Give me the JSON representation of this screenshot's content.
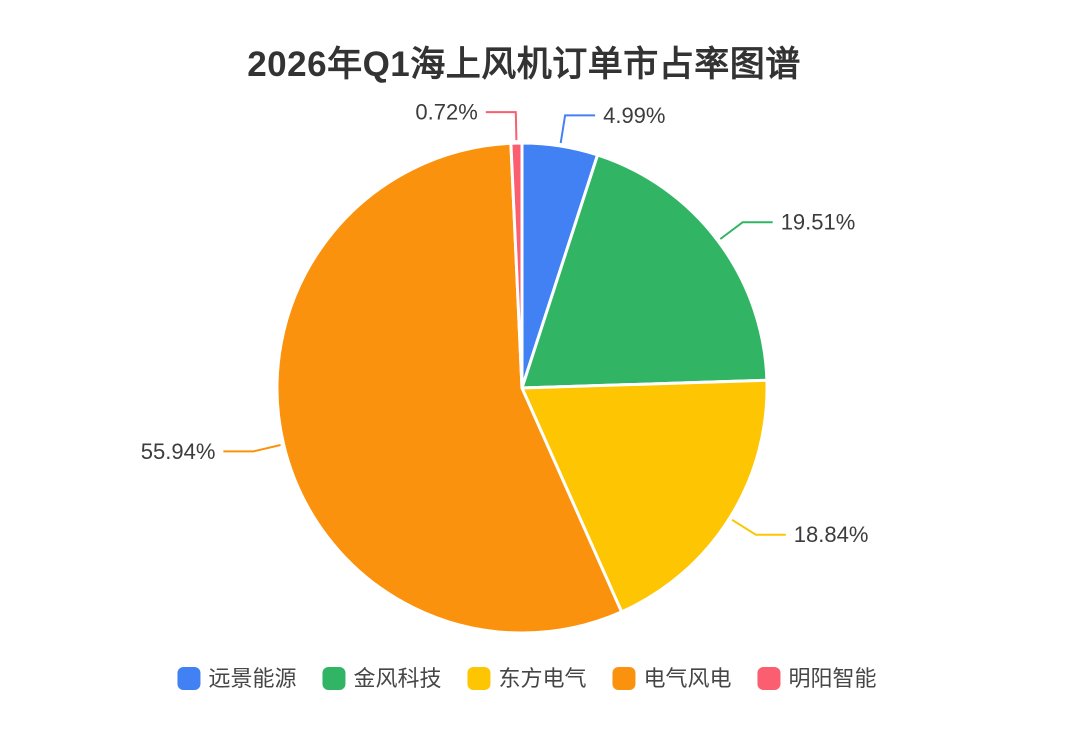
{
  "title": "2026年Q1海上风机订单市占率图谱",
  "chart_data": {
    "type": "pie",
    "title": "2026年Q1海上风机订单市占率图谱",
    "unit": "%",
    "start_angle": "top",
    "direction": "clockwise",
    "series": [
      {
        "name": "远景能源",
        "value": 4.99,
        "label": "4.99%",
        "color": "#4181f4"
      },
      {
        "name": "金风科技",
        "value": 19.51,
        "label": "19.51%",
        "color": "#31b564"
      },
      {
        "name": "东方电气",
        "value": 18.84,
        "label": "18.84%",
        "color": "#fdc502"
      },
      {
        "name": "电气风电",
        "value": 55.94,
        "label": "55.94%",
        "color": "#fb920e"
      },
      {
        "name": "明阳智能",
        "value": 0.72,
        "label": "0.72%",
        "color": "#fa5e70"
      }
    ],
    "legend": [
      "远景能源",
      "金风科技",
      "东方电气",
      "电气风电",
      "明阳智能"
    ],
    "legend_position": "bottom",
    "slice_border_color": "#ffffff",
    "label_text_color": "#3c3c3c",
    "title_color": "#333333",
    "background_color": "#ffffff"
  }
}
